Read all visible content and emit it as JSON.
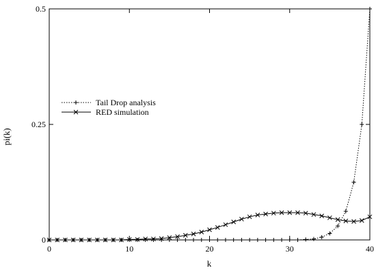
{
  "chart_data": {
    "type": "line",
    "title": "",
    "xlabel": "k",
    "ylabel": "pi(k)",
    "xlim": [
      0,
      40
    ],
    "ylim": [
      0,
      0.5
    ],
    "xticks": [
      0,
      10,
      20,
      30,
      40
    ],
    "yticks": [
      0,
      0.25,
      0.5
    ],
    "xtick_labels": [
      "0",
      "10",
      "20",
      "30",
      "40"
    ],
    "ytick_labels": [
      "0",
      "0.25",
      "0.5"
    ],
    "grid": false,
    "legend_position": "left",
    "series": [
      {
        "name": "Tail Drop analysis",
        "marker": "plus",
        "line_style": "dotted",
        "color": "#000000",
        "x": [
          0,
          1,
          2,
          3,
          4,
          5,
          6,
          7,
          8,
          9,
          10,
          11,
          12,
          13,
          14,
          15,
          16,
          17,
          18,
          19,
          20,
          21,
          22,
          23,
          24,
          25,
          26,
          27,
          28,
          29,
          30,
          31,
          32,
          33,
          34,
          35,
          36,
          37,
          38,
          39,
          40
        ],
        "y": [
          0,
          0,
          0,
          0,
          0,
          0,
          0,
          0,
          0,
          0,
          0,
          0,
          0,
          0,
          0,
          0,
          0,
          0,
          0,
          0,
          0,
          0,
          0,
          0,
          0,
          0,
          0,
          0,
          0,
          0,
          0,
          0,
          0.001,
          0.002,
          0.006,
          0.014,
          0.03,
          0.062,
          0.125,
          0.25,
          0.5
        ]
      },
      {
        "name": "RED simulation",
        "marker": "x",
        "line_style": "solid",
        "color": "#000000",
        "x": [
          0,
          1,
          2,
          3,
          4,
          5,
          6,
          7,
          8,
          9,
          10,
          11,
          12,
          13,
          14,
          15,
          16,
          17,
          18,
          19,
          20,
          21,
          22,
          23,
          24,
          25,
          26,
          27,
          28,
          29,
          30,
          31,
          32,
          33,
          34,
          35,
          36,
          37,
          38,
          39,
          40
        ],
        "y": [
          0,
          0,
          0,
          0,
          0,
          0,
          0,
          0,
          0,
          0,
          0.001,
          0.001,
          0.002,
          0.002,
          0.003,
          0.005,
          0.007,
          0.01,
          0.013,
          0.017,
          0.022,
          0.027,
          0.033,
          0.039,
          0.045,
          0.05,
          0.054,
          0.056,
          0.058,
          0.059,
          0.059,
          0.059,
          0.058,
          0.055,
          0.052,
          0.048,
          0.044,
          0.041,
          0.04,
          0.042,
          0.05
        ]
      }
    ]
  }
}
